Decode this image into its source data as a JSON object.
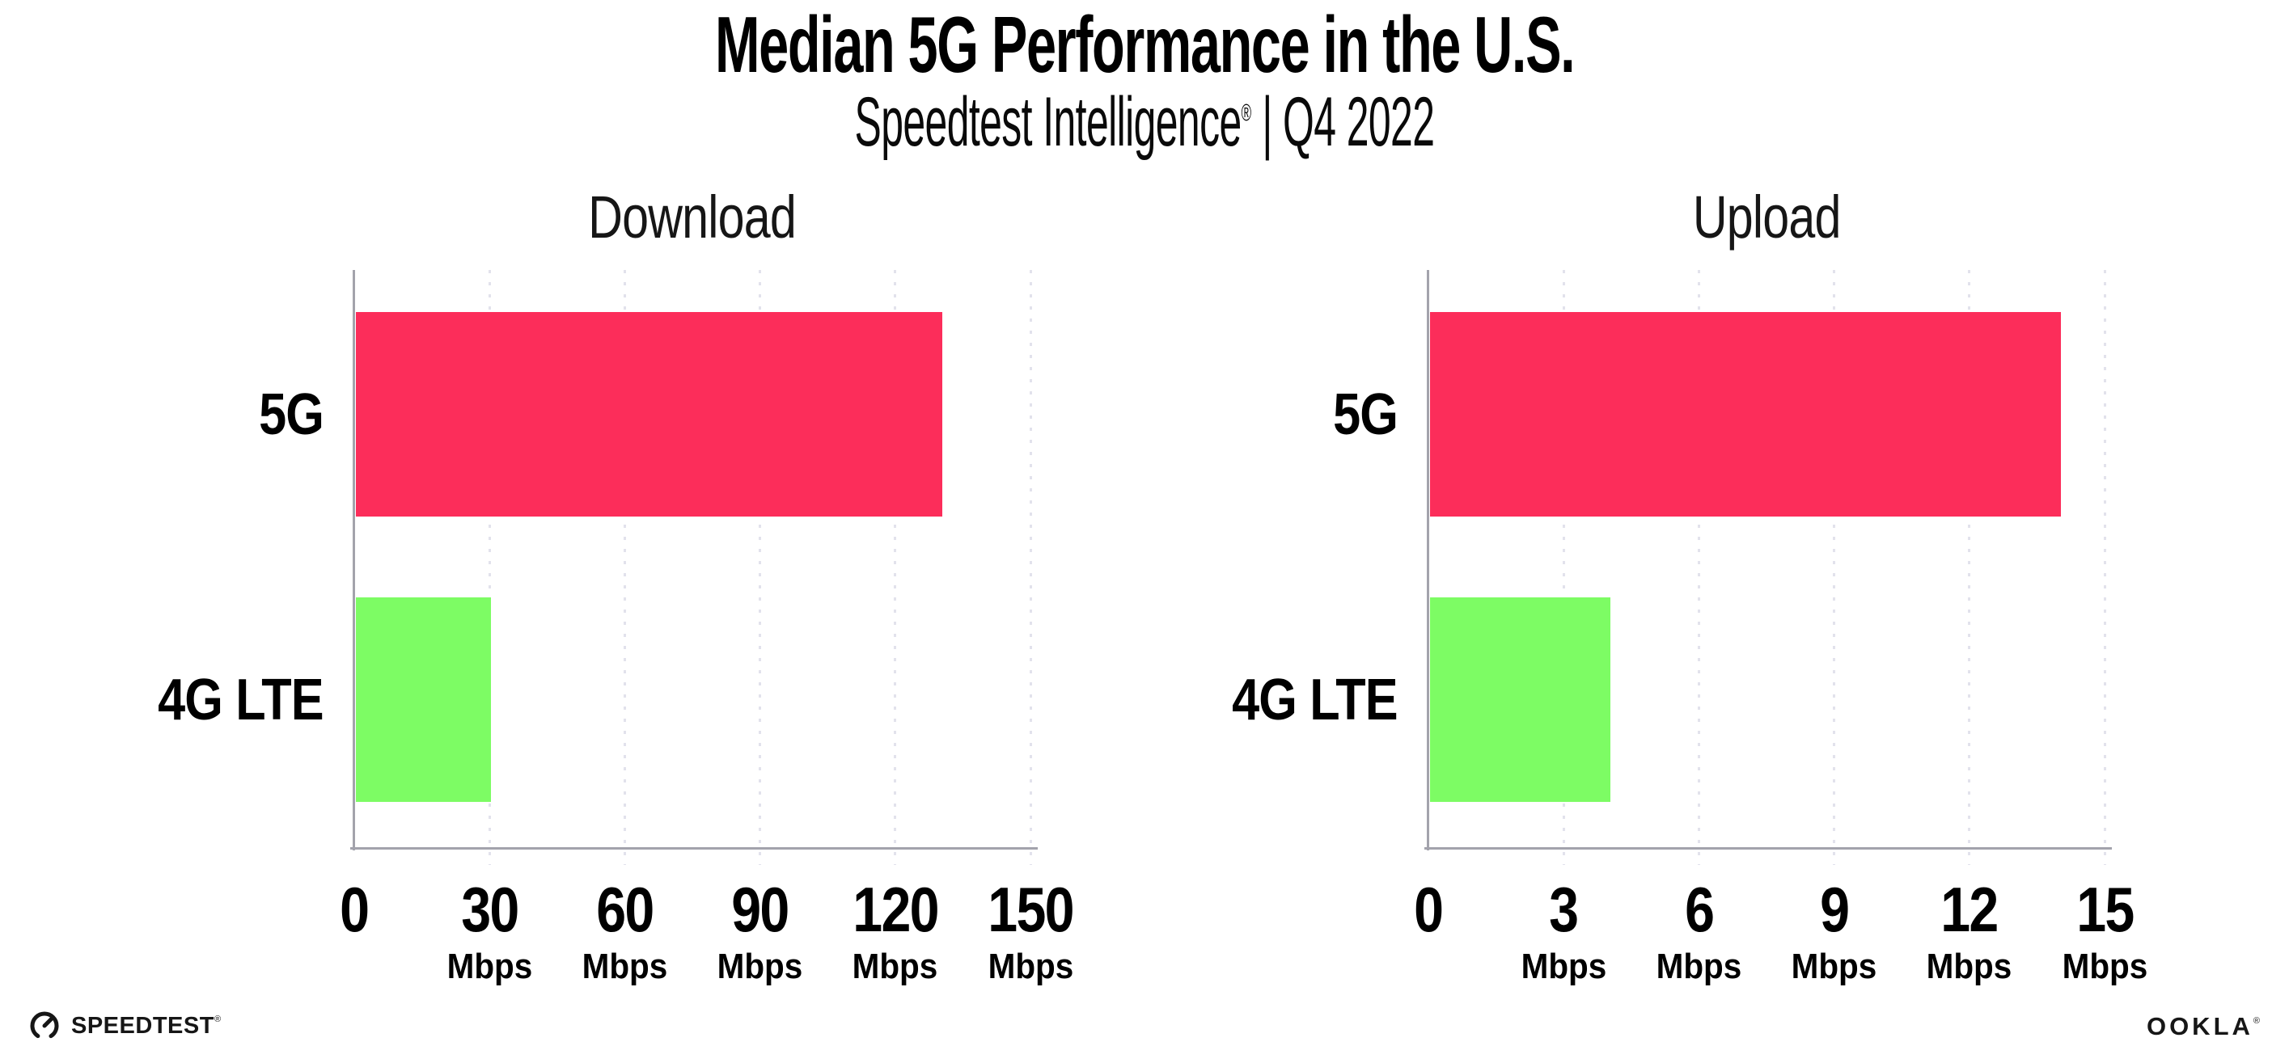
{
  "header": {
    "title": "Median 5G Performance in the U.S.",
    "subtitle_brand": "Speedtest Intelligence",
    "subtitle_mark": "®",
    "subtitle_rest": " | Q4 2022"
  },
  "colors": {
    "bar_5g": "#FC2D5A",
    "bar_4g_lte": "#7DFC64",
    "axis": "#A3A3AC",
    "gridline": "#E2E2EC",
    "text": "#000000"
  },
  "chart_data": [
    {
      "type": "bar",
      "orientation": "horizontal",
      "title": "Download",
      "categories": [
        "5G",
        "4G LTE"
      ],
      "values": [
        130,
        30
      ],
      "unit": "Mbps",
      "xlabel": "",
      "ylabel": "",
      "xlim": [
        0,
        150
      ],
      "xticks": [
        0,
        30,
        60,
        90,
        120,
        150
      ],
      "bar_colors": [
        "#FC2D5A",
        "#7DFC64"
      ],
      "grid": "dotted-vertical-gridlines",
      "legend_position": "none"
    },
    {
      "type": "bar",
      "orientation": "horizontal",
      "title": "Upload",
      "categories": [
        "5G",
        "4G LTE"
      ],
      "values": [
        14,
        4
      ],
      "unit": "Mbps",
      "xlabel": "",
      "ylabel": "",
      "xlim": [
        0,
        15
      ],
      "xticks": [
        0,
        3,
        6,
        9,
        12,
        15
      ],
      "bar_colors": [
        "#FC2D5A",
        "#7DFC64"
      ],
      "grid": "dotted-vertical-gridlines",
      "legend_position": "none"
    }
  ],
  "footer": {
    "speedtest_label": "SPEEDTEST",
    "speedtest_mark": "®",
    "speedtest_icon": "speedtest-gauge-icon",
    "ookla_label": "OOKLA",
    "ookla_mark": "®"
  }
}
